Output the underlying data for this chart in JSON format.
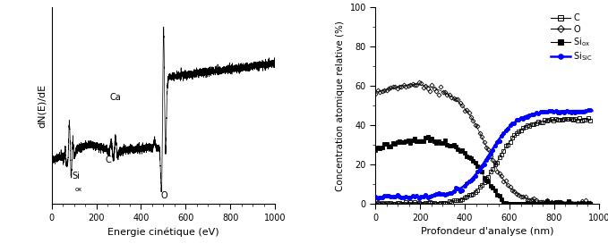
{
  "left_xlabel": "Energie cinétique (eV)",
  "left_ylabel": "dN(E)/dE",
  "left_xlim": [
    0,
    1000
  ],
  "left_xticks": [
    0,
    200,
    400,
    600,
    800,
    1000
  ],
  "right_xlabel": "Profondeur d'analyse (nm)",
  "right_ylabel": "Concentration atomique relative (%)",
  "right_xlim": [
    0,
    1000
  ],
  "right_ylim": [
    0,
    100
  ],
  "right_yticks": [
    0,
    20,
    40,
    60,
    80,
    100
  ],
  "right_xticks": [
    0,
    200,
    400,
    600,
    800,
    1000
  ]
}
